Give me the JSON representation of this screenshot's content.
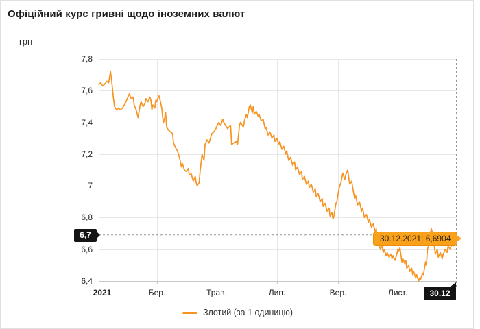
{
  "header": {
    "title": "Офіційний курс гривні щодо іноземних валют"
  },
  "unit_label": "грн",
  "tooltip": {
    "text": "30.12.2021: 6,6904"
  },
  "crosshair_labels": {
    "y": "6,7",
    "x": "30.12"
  },
  "legend": {
    "label": "Злотий (за 1 одиницю)"
  },
  "colors": {
    "accent": "#f79421",
    "tooltip_bg": "#f9a11b",
    "tooltip_border": "#ea8e07",
    "badge_bg": "#141414",
    "grid": "#e7e7e7",
    "axis": "#c8c8c8"
  },
  "chart_data": {
    "type": "line",
    "title": "Офіційний курс гривні щодо іноземних валют",
    "xlabel": "",
    "ylabel": "грн",
    "series_name": "Злотий (за 1 одиницю)",
    "line_color": "#f79421",
    "grid": true,
    "legend_position": "bottom",
    "ylim": [
      6.4,
      7.8
    ],
    "x_range": [
      "01.01.2021",
      "30.12.2021"
    ],
    "y_ticks": [
      {
        "label": "7,8",
        "value": 7.8
      },
      {
        "label": "7,6",
        "value": 7.6
      },
      {
        "label": "7,4",
        "value": 7.4
      },
      {
        "label": "7,2",
        "value": 7.2
      },
      {
        "label": "7",
        "value": 7.0
      },
      {
        "label": "6,8",
        "value": 6.8
      },
      {
        "label": "6,6",
        "value": 6.6
      },
      {
        "label": "6,4",
        "value": 6.4
      }
    ],
    "x_ticks": [
      {
        "label": "2021",
        "day": 0,
        "bold": true
      },
      {
        "label": "Бер.",
        "day": 59,
        "bold": false
      },
      {
        "label": "Трав.",
        "day": 120,
        "bold": false
      },
      {
        "label": "Лип.",
        "day": 181,
        "bold": false
      },
      {
        "label": "Вер.",
        "day": 243,
        "bold": false
      },
      {
        "label": "Лист.",
        "day": 304,
        "bold": false
      }
    ],
    "marker": {
      "date": "30.12.2021",
      "day": 363,
      "value": 6.6904,
      "rounded_value_label": "6,7",
      "date_label": "30.12"
    },
    "points": [
      [
        0,
        7.64
      ],
      [
        2,
        7.65
      ],
      [
        4,
        7.63
      ],
      [
        6,
        7.64
      ],
      [
        8,
        7.66
      ],
      [
        10,
        7.65
      ],
      [
        12,
        7.72
      ],
      [
        13,
        7.67
      ],
      [
        15,
        7.55
      ],
      [
        16,
        7.5
      ],
      [
        18,
        7.48
      ],
      [
        20,
        7.49
      ],
      [
        22,
        7.48
      ],
      [
        24,
        7.49
      ],
      [
        27,
        7.52
      ],
      [
        29,
        7.55
      ],
      [
        31,
        7.58
      ],
      [
        33,
        7.55
      ],
      [
        35,
        7.56
      ],
      [
        36,
        7.51
      ],
      [
        38,
        7.48
      ],
      [
        40,
        7.43
      ],
      [
        42,
        7.51
      ],
      [
        43,
        7.53
      ],
      [
        45,
        7.5
      ],
      [
        47,
        7.52
      ],
      [
        48,
        7.55
      ],
      [
        50,
        7.53
      ],
      [
        52,
        7.56
      ],
      [
        53,
        7.54
      ],
      [
        54,
        7.48
      ],
      [
        55,
        7.51
      ],
      [
        57,
        7.49
      ],
      [
        58,
        7.54
      ],
      [
        59,
        7.53
      ],
      [
        61,
        7.57
      ],
      [
        62,
        7.55
      ],
      [
        64,
        7.49
      ],
      [
        65,
        7.43
      ],
      [
        66,
        7.4
      ],
      [
        68,
        7.46
      ],
      [
        69,
        7.37
      ],
      [
        71,
        7.35
      ],
      [
        73,
        7.34
      ],
      [
        75,
        7.33
      ],
      [
        76,
        7.27
      ],
      [
        78,
        7.24
      ],
      [
        80,
        7.22
      ],
      [
        82,
        7.18
      ],
      [
        84,
        7.12
      ],
      [
        85,
        7.14
      ],
      [
        87,
        7.1
      ],
      [
        89,
        7.09
      ],
      [
        91,
        7.11
      ],
      [
        92,
        7.07
      ],
      [
        94,
        7.075
      ],
      [
        96,
        7.03
      ],
      [
        98,
        7.06
      ],
      [
        99,
        7.02
      ],
      [
        100,
        7.0
      ],
      [
        102,
        7.02
      ],
      [
        103,
        7.09
      ],
      [
        105,
        7.2
      ],
      [
        107,
        7.16
      ],
      [
        108,
        7.26
      ],
      [
        110,
        7.29
      ],
      [
        112,
        7.27
      ],
      [
        114,
        7.31
      ],
      [
        115,
        7.33
      ],
      [
        117,
        7.34
      ],
      [
        119,
        7.36
      ],
      [
        120,
        7.375
      ],
      [
        122,
        7.4
      ],
      [
        124,
        7.38
      ],
      [
        126,
        7.42
      ],
      [
        127,
        7.4
      ],
      [
        129,
        7.38
      ],
      [
        131,
        7.36
      ],
      [
        132,
        7.37
      ],
      [
        134,
        7.38
      ],
      [
        135,
        7.26
      ],
      [
        137,
        7.27
      ],
      [
        140,
        7.28
      ],
      [
        141,
        7.26
      ],
      [
        143,
        7.38
      ],
      [
        144,
        7.4
      ],
      [
        147,
        7.37
      ],
      [
        148,
        7.41
      ],
      [
        150,
        7.45
      ],
      [
        151,
        7.43
      ],
      [
        153,
        7.5
      ],
      [
        154,
        7.51
      ],
      [
        156,
        7.46
      ],
      [
        157,
        7.5
      ],
      [
        158,
        7.45
      ],
      [
        160,
        7.47
      ],
      [
        162,
        7.44
      ],
      [
        163,
        7.45
      ],
      [
        165,
        7.41
      ],
      [
        167,
        7.42
      ],
      [
        169,
        7.36
      ],
      [
        170,
        7.37
      ],
      [
        172,
        7.32
      ],
      [
        174,
        7.34
      ],
      [
        176,
        7.3
      ],
      [
        178,
        7.32
      ],
      [
        179,
        7.28
      ],
      [
        181,
        7.3
      ],
      [
        183,
        7.26
      ],
      [
        184,
        7.28
      ],
      [
        186,
        7.23
      ],
      [
        188,
        7.25
      ],
      [
        190,
        7.2
      ],
      [
        191,
        7.22
      ],
      [
        193,
        7.16
      ],
      [
        195,
        7.18
      ],
      [
        197,
        7.13
      ],
      [
        199,
        7.15
      ],
      [
        200,
        7.1
      ],
      [
        202,
        7.12
      ],
      [
        204,
        7.07
      ],
      [
        206,
        7.09
      ],
      [
        207,
        7.04
      ],
      [
        209,
        7.06
      ],
      [
        211,
        7.01
      ],
      [
        213,
        7.03
      ],
      [
        214,
        6.99
      ],
      [
        216,
        7.01
      ],
      [
        218,
        6.96
      ],
      [
        220,
        6.98
      ],
      [
        221,
        6.93
      ],
      [
        223,
        6.95
      ],
      [
        225,
        6.9
      ],
      [
        227,
        6.92
      ],
      [
        228,
        6.87
      ],
      [
        230,
        6.89
      ],
      [
        232,
        6.84
      ],
      [
        234,
        6.86
      ],
      [
        235,
        6.81
      ],
      [
        237,
        6.83
      ],
      [
        238,
        6.79
      ],
      [
        239,
        6.81
      ],
      [
        241,
        6.89
      ],
      [
        242,
        6.9
      ],
      [
        244,
        6.98
      ],
      [
        246,
        7.02
      ],
      [
        247,
        7.05
      ],
      [
        248,
        7.08
      ],
      [
        250,
        7.04
      ],
      [
        251,
        7.07
      ],
      [
        253,
        7.1
      ],
      [
        254,
        7.05
      ],
      [
        255,
        7.01
      ],
      [
        257,
        7.03
      ],
      [
        258,
        6.99
      ],
      [
        260,
        6.92
      ],
      [
        261,
        6.94
      ],
      [
        263,
        6.88
      ],
      [
        265,
        6.9
      ],
      [
        267,
        6.84
      ],
      [
        268,
        6.86
      ],
      [
        270,
        6.8
      ],
      [
        272,
        6.82
      ],
      [
        274,
        6.77
      ],
      [
        275,
        6.79
      ],
      [
        277,
        6.74
      ],
      [
        279,
        6.76
      ],
      [
        281,
        6.71
      ],
      [
        282,
        6.73
      ],
      [
        283,
        6.65
      ],
      [
        285,
        6.63
      ],
      [
        286,
        6.6
      ],
      [
        288,
        6.62
      ],
      [
        289,
        6.58
      ],
      [
        290,
        6.6
      ],
      [
        292,
        6.56
      ],
      [
        293,
        6.58
      ],
      [
        295,
        6.55
      ],
      [
        297,
        6.57
      ],
      [
        298,
        6.54
      ],
      [
        299,
        6.56
      ],
      [
        301,
        6.53
      ],
      [
        302,
        6.55
      ],
      [
        304,
        6.6
      ],
      [
        305,
        6.59
      ],
      [
        306,
        6.61
      ],
      [
        308,
        6.52
      ],
      [
        309,
        6.54
      ],
      [
        311,
        6.51
      ],
      [
        312,
        6.53
      ],
      [
        313,
        6.48
      ],
      [
        315,
        6.5
      ],
      [
        316,
        6.46
      ],
      [
        318,
        6.48
      ],
      [
        319,
        6.44
      ],
      [
        320,
        6.46
      ],
      [
        322,
        6.42
      ],
      [
        323,
        6.44
      ],
      [
        325,
        6.4
      ],
      [
        326,
        6.42
      ],
      [
        327,
        6.41
      ],
      [
        329,
        6.45
      ],
      [
        330,
        6.44
      ],
      [
        332,
        6.52
      ],
      [
        333,
        6.5
      ],
      [
        334,
        6.6
      ],
      [
        336,
        6.64
      ],
      [
        337,
        6.7
      ],
      [
        338,
        6.73
      ],
      [
        340,
        6.68
      ],
      [
        341,
        6.62
      ],
      [
        342,
        6.57
      ],
      [
        344,
        6.6
      ],
      [
        345,
        6.55
      ],
      [
        347,
        6.58
      ],
      [
        349,
        6.54
      ],
      [
        350,
        6.57
      ],
      [
        352,
        6.6
      ],
      [
        354,
        6.58
      ],
      [
        355,
        6.62
      ],
      [
        357,
        6.6
      ],
      [
        359,
        6.64
      ],
      [
        360,
        6.62
      ],
      [
        362,
        6.66
      ],
      [
        363,
        6.6904
      ]
    ]
  }
}
